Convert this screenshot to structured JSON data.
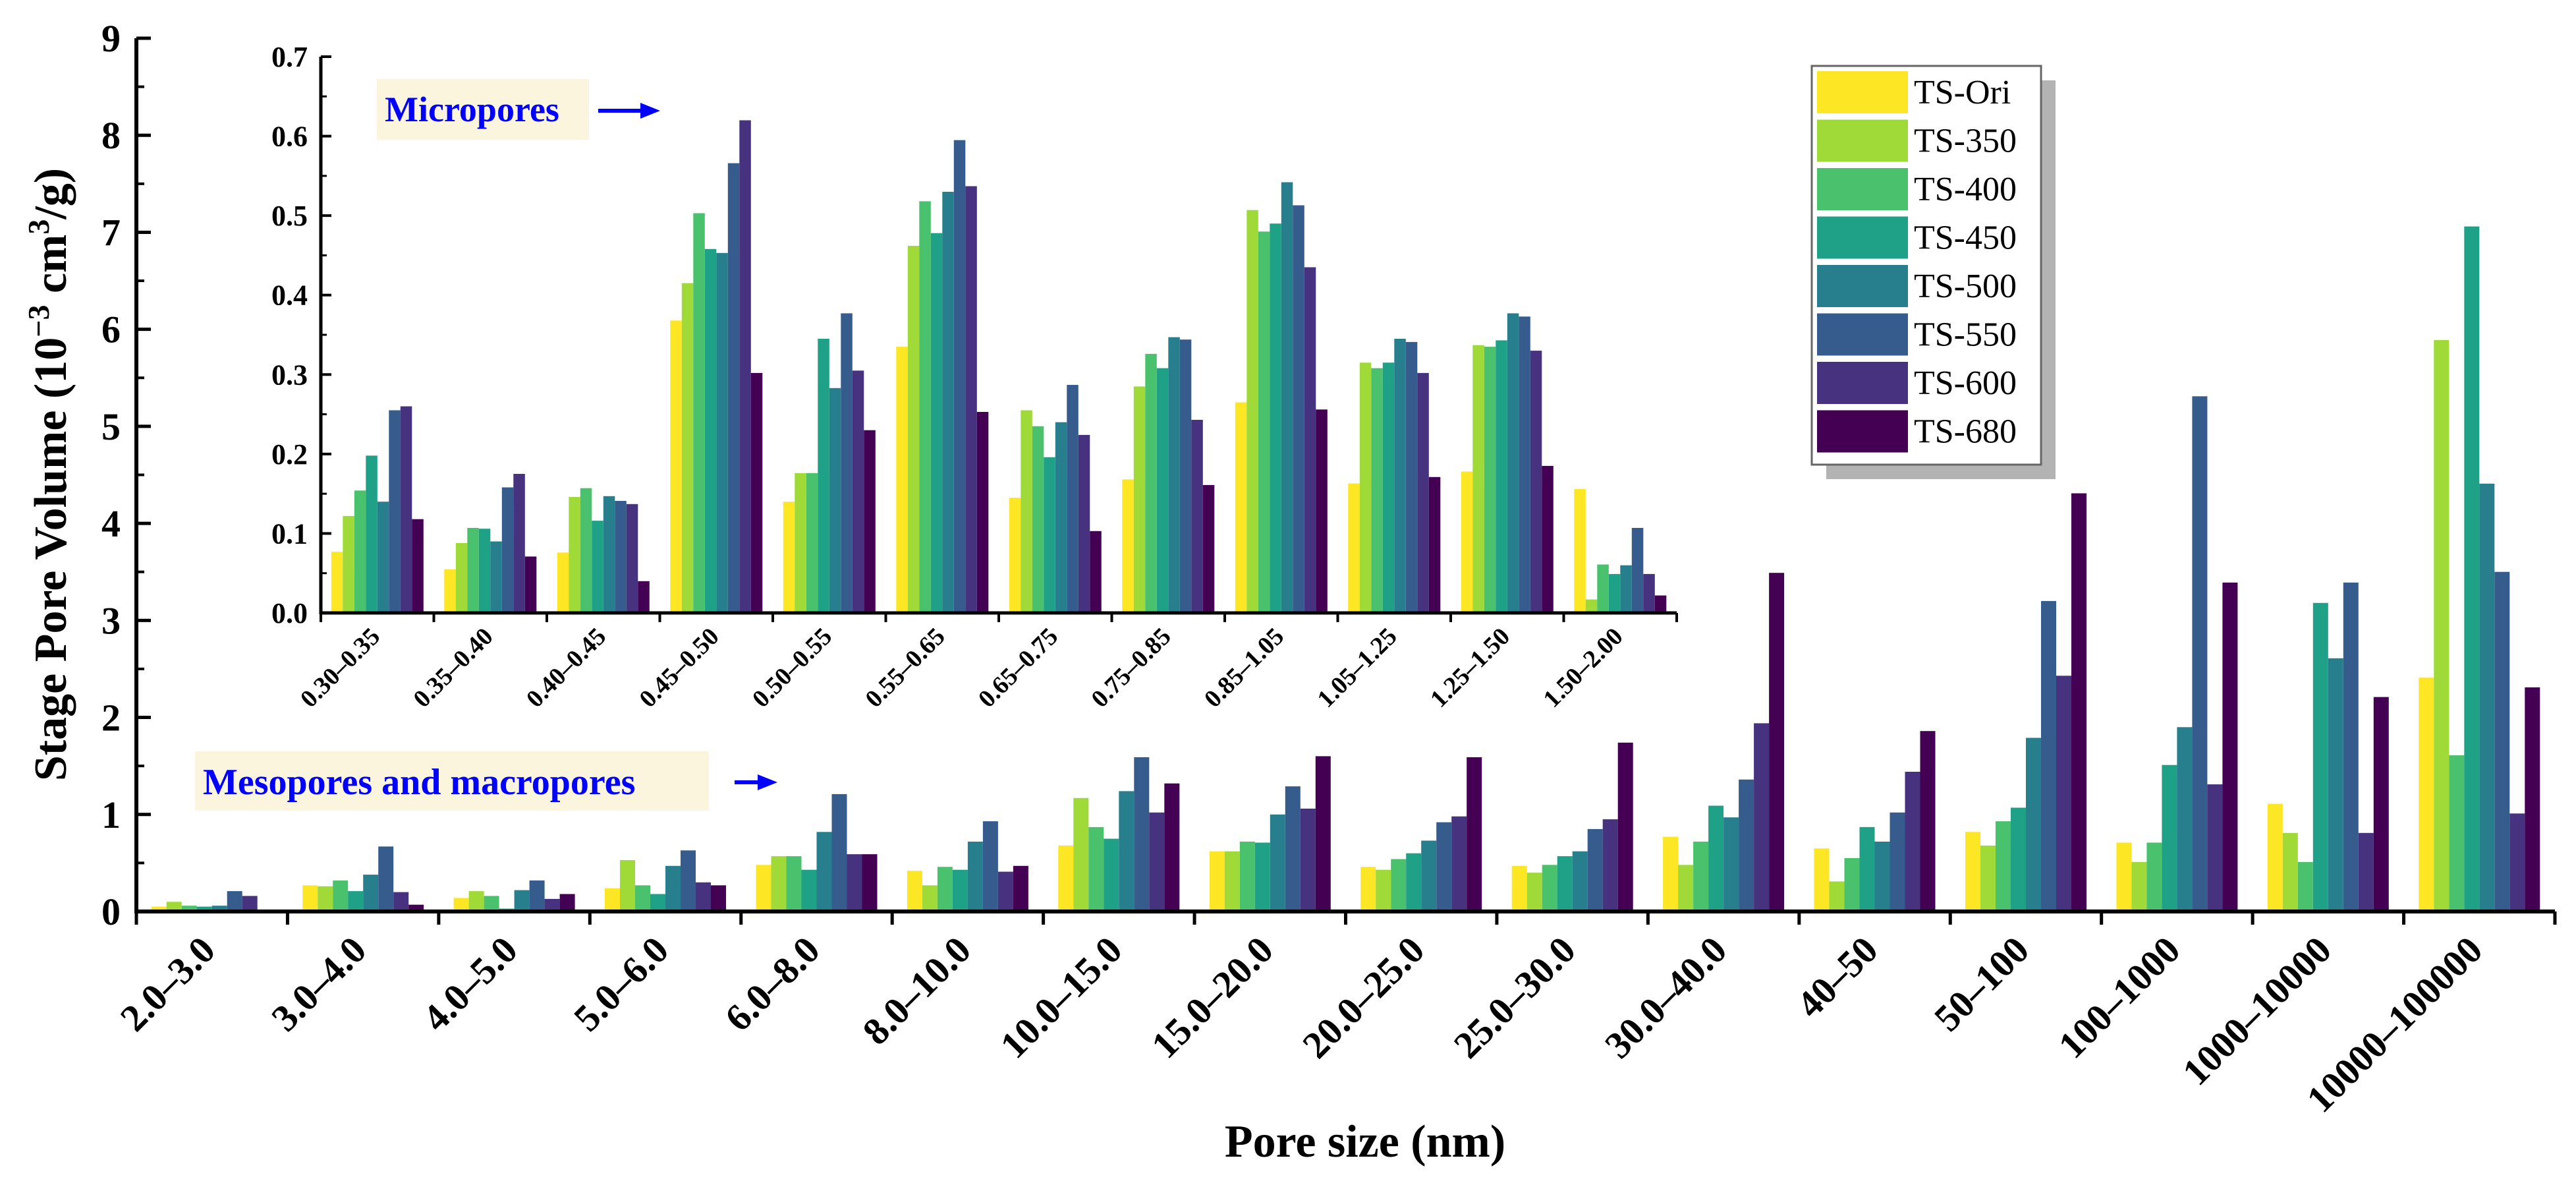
{
  "series": [
    "TS-Ori",
    "TS-350",
    "TS-400",
    "TS-450",
    "TS-500",
    "TS-550",
    "TS-600",
    "TS-680"
  ],
  "colors": [
    "#fde725",
    "#a0da39",
    "#4ac16d",
    "#1fa187",
    "#277f8e",
    "#365c8d",
    "#46327e",
    "#440154"
  ],
  "legend_position": "top-right",
  "chart_data": [
    {
      "type": "bar",
      "title": "",
      "xlabel": "Pore size (nm)",
      "ylabel_main": "Stage Pore Volume (10",
      "ylabel_sup": "−3",
      "ylabel_unit": " cm",
      "ylabel_unit_sup": "3",
      "ylabel_end": "/g)",
      "ylim": [
        0,
        9
      ],
      "yticks": [
        0,
        1,
        2,
        3,
        4,
        5,
        6,
        7,
        8,
        9
      ],
      "annotation": "Mesopores and macropores",
      "categories": [
        "2.0–3.0",
        "3.0–4.0",
        "4.0–5.0",
        "5.0–6.0",
        "6.0–8.0",
        "8.0–10.0",
        "10.0–15.0",
        "15.0–20.0",
        "20.0–25.0",
        "25.0–30.0",
        "30.0–40.0",
        "40–50",
        "50–100",
        "100–1000",
        "1000–10000",
        "10000–100000"
      ],
      "series": [
        {
          "name": "TS-Ori",
          "values": [
            0.05,
            0.27,
            0.14,
            0.24,
            0.48,
            0.42,
            0.68,
            0.62,
            0.46,
            0.47,
            0.77,
            0.65,
            0.82,
            0.71,
            1.11,
            2.41
          ]
        },
        {
          "name": "TS-350",
          "values": [
            0.1,
            0.26,
            0.21,
            0.53,
            0.57,
            0.27,
            1.17,
            0.62,
            0.43,
            0.4,
            0.48,
            0.31,
            0.68,
            0.51,
            0.81,
            5.89
          ]
        },
        {
          "name": "TS-400",
          "values": [
            0.06,
            0.32,
            0.16,
            0.27,
            0.57,
            0.46,
            0.87,
            0.72,
            0.54,
            0.48,
            0.72,
            0.55,
            0.93,
            0.71,
            0.51,
            1.61
          ]
        },
        {
          "name": "TS-450",
          "values": [
            0.05,
            0.21,
            0.03,
            0.18,
            0.43,
            0.43,
            0.75,
            0.71,
            0.6,
            0.57,
            1.09,
            0.87,
            1.07,
            1.51,
            3.18,
            7.06
          ]
        },
        {
          "name": "TS-500",
          "values": [
            0.06,
            0.38,
            0.22,
            0.47,
            0.82,
            0.72,
            1.24,
            1.0,
            0.73,
            0.62,
            0.97,
            0.72,
            1.79,
            1.9,
            2.61,
            4.41
          ]
        },
        {
          "name": "TS-550",
          "values": [
            0.21,
            0.67,
            0.32,
            0.63,
            1.21,
            0.93,
            1.59,
            1.29,
            0.92,
            0.85,
            1.36,
            1.02,
            3.2,
            5.31,
            3.39,
            3.5
          ]
        },
        {
          "name": "TS-600",
          "values": [
            0.16,
            0.2,
            0.13,
            0.3,
            0.59,
            0.41,
            1.02,
            1.06,
            0.98,
            0.95,
            1.94,
            1.44,
            2.43,
            1.31,
            0.81,
            1.01
          ]
        },
        {
          "name": "TS-680",
          "values": [
            0.02,
            0.07,
            0.18,
            0.27,
            0.59,
            0.47,
            1.32,
            1.6,
            1.59,
            1.74,
            3.49,
            1.86,
            4.31,
            3.39,
            2.21,
            2.31
          ]
        }
      ]
    },
    {
      "type": "bar",
      "title": "",
      "xlabel": "",
      "ylabel": "",
      "ylim": [
        0,
        0.7
      ],
      "yticks": [
        "0.0",
        "0.1",
        "0.2",
        "0.3",
        "0.4",
        "0.5",
        "0.6",
        "0.7"
      ],
      "annotation": "Micropores",
      "categories": [
        "0.30–0.35",
        "0.35–0.40",
        "0.40–0.45",
        "0.45–0.50",
        "0.50–0.55",
        "0.55–0.65",
        "0.65–0.75",
        "0.75–0.85",
        "0.85–1.05",
        "1.05–1.25",
        "1.25–1.50",
        "1.50–2.00"
      ],
      "series": [
        {
          "name": "TS-Ori",
          "values": [
            0.077,
            0.055,
            0.076,
            0.368,
            0.14,
            0.335,
            0.145,
            0.168,
            0.265,
            0.163,
            0.178,
            0.156
          ]
        },
        {
          "name": "TS-350",
          "values": [
            0.122,
            0.088,
            0.146,
            0.415,
            0.176,
            0.462,
            0.255,
            0.285,
            0.507,
            0.315,
            0.337,
            0.017
          ]
        },
        {
          "name": "TS-400",
          "values": [
            0.154,
            0.107,
            0.157,
            0.503,
            0.176,
            0.518,
            0.235,
            0.326,
            0.48,
            0.308,
            0.335,
            0.061
          ]
        },
        {
          "name": "TS-450",
          "values": [
            0.198,
            0.106,
            0.116,
            0.458,
            0.345,
            0.478,
            0.196,
            0.308,
            0.49,
            0.315,
            0.343,
            0.049
          ]
        },
        {
          "name": "TS-500",
          "values": [
            0.14,
            0.09,
            0.147,
            0.453,
            0.283,
            0.53,
            0.24,
            0.347,
            0.542,
            0.345,
            0.377,
            0.06
          ]
        },
        {
          "name": "TS-550",
          "values": [
            0.255,
            0.158,
            0.141,
            0.566,
            0.377,
            0.595,
            0.287,
            0.344,
            0.513,
            0.341,
            0.373,
            0.107
          ]
        },
        {
          "name": "TS-600",
          "values": [
            0.26,
            0.175,
            0.137,
            0.62,
            0.305,
            0.537,
            0.224,
            0.243,
            0.435,
            0.302,
            0.33,
            0.049
          ]
        },
        {
          "name": "TS-680",
          "values": [
            0.118,
            0.071,
            0.04,
            0.302,
            0.23,
            0.253,
            0.103,
            0.161,
            0.256,
            0.171,
            0.185,
            0.022
          ]
        }
      ]
    }
  ]
}
